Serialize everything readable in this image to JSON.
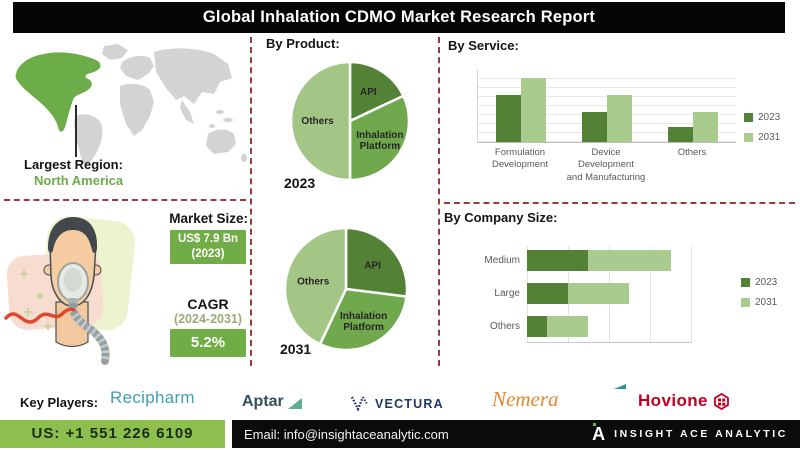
{
  "title": "Global Inhalation CDMO Market Research Report",
  "region": {
    "label": "Largest Region:",
    "value": "North America"
  },
  "market": {
    "size_label": "Market Size:",
    "size_value": "US$ 7.9 Bn",
    "size_year": "(2023)",
    "cagr_label": "CAGR",
    "cagr_period": "(2024-2031)",
    "cagr_value": "5.2%"
  },
  "sections": {
    "product": "By Product:",
    "service": "By Service:",
    "company": "By Company Size:"
  },
  "chart_data": [
    {
      "id": "product_2023",
      "type": "pie",
      "title": "2023",
      "slices": [
        {
          "label": "API",
          "value": 18,
          "color": "#538135"
        },
        {
          "label": "Inhalation Platform",
          "value": 32,
          "color": "#6FA84D"
        },
        {
          "label": "Others",
          "value": 50,
          "color": "#A3C585"
        }
      ]
    },
    {
      "id": "product_2031",
      "type": "pie",
      "title": "2031",
      "slices": [
        {
          "label": "API",
          "value": 27,
          "color": "#538135"
        },
        {
          "label": "Inhalation Platform",
          "value": 30,
          "color": "#6FA84D"
        },
        {
          "label": "Others",
          "value": 43,
          "color": "#A3C585"
        }
      ]
    },
    {
      "id": "service",
      "type": "bar",
      "title": "By Service",
      "categories": [
        "Formulation\nDevelopment",
        "Device Development\nand Manufacturing",
        "Others"
      ],
      "series": [
        {
          "name": "2023",
          "color": "#538135",
          "values": [
            65,
            42,
            21
          ]
        },
        {
          "name": "2031",
          "color": "#A9CB8E",
          "values": [
            89,
            65,
            42
          ]
        }
      ],
      "ylim": [
        0,
        100
      ],
      "grid": true,
      "legend_position": "right"
    },
    {
      "id": "company_size",
      "type": "stacked-bar-horizontal",
      "title": "By Company Size",
      "categories": [
        "Medium",
        "Large",
        "Others"
      ],
      "series": [
        {
          "name": "2023",
          "color": "#538135",
          "values": [
            37,
            25,
            12
          ]
        },
        {
          "name": "2031",
          "color": "#A9CB8E",
          "values": [
            51,
            37,
            25
          ]
        }
      ],
      "xlim": [
        0,
        100
      ],
      "grid": true,
      "legend_position": "right"
    }
  ],
  "key_players": {
    "label": "Key Players:",
    "companies": [
      "Recipharm",
      "Aptar",
      "VECTURA",
      "Nemera",
      "Hovione"
    ]
  },
  "footer": {
    "phone": "US: +1 551 226 6109",
    "email": "Email: info@insightaceanalytic.com",
    "brand": "INSIGHT ACE ANALYTIC",
    "brand_initial": "A"
  },
  "colors": {
    "accent_green": "#70AD47",
    "dark_green": "#538135",
    "mid_green": "#6FA84D",
    "light_green": "#A9CB8E",
    "map_green": "#6CAC49",
    "map_gray": "#D3D3D3",
    "dashed_red": "#9B3A3A",
    "footer_green": "#8CBF4D"
  }
}
